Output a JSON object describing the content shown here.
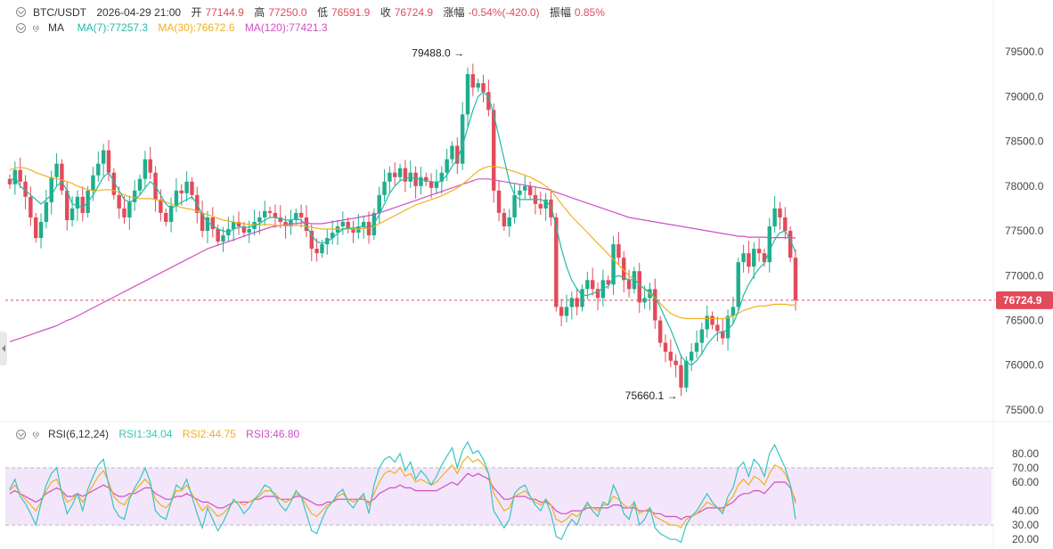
{
  "header": {
    "pair": "BTC/USDT",
    "datetime": "2026-04-29 21:00",
    "open_label": "开",
    "open": "77144.9",
    "high_label": "高",
    "high": "77250.0",
    "low_label": "低",
    "low": "76591.9",
    "close_label": "收",
    "close": "76724.9",
    "change_label": "涨幅",
    "change": "-0.54%(-420.0)",
    "amplitude_label": "振幅",
    "amplitude": "0.85%"
  },
  "ma_legend": {
    "name": "MA",
    "ma7": "MA(7):77257.3",
    "ma30": "MA(30):76672.6",
    "ma120": "MA(120):77421.3"
  },
  "rsi_legend": {
    "name": "RSI(6,12,24)",
    "rsi1": "RSI1:34.04",
    "rsi2": "RSI2:44.75",
    "rsi3": "RSI3:46.80"
  },
  "colors": {
    "up": "#1fae8c",
    "down": "#e24b5b",
    "ma7": "#22b9a5",
    "ma30": "#f2b01e",
    "ma120": "#d04fc3",
    "rsi1": "#36c5bf",
    "rsi2": "#f2b01e",
    "rsi3": "#d04fc3",
    "rsi_band": "#f3e6fb"
  },
  "chart_data": [
    {
      "type": "candlestick",
      "title": "BTC/USDT",
      "ylim": [
        75400,
        79700
      ],
      "yticks": [
        "79500.0",
        "79000.0",
        "78500.0",
        "78000.0",
        "77500.0",
        "77000.0",
        "76500.0",
        "76000.0",
        "75500.0"
      ],
      "ytick_values": [
        79500,
        79000,
        78500,
        78000,
        77500,
        77000,
        76500,
        76000,
        75500
      ],
      "current_price": 76724.9,
      "current_price_label": "76724.9",
      "high_annotation": {
        "value": 79488.0,
        "label": "79488.0"
      },
      "low_annotation": {
        "value": 75660.1,
        "label": "75660.1"
      },
      "closes": [
        78020,
        78180,
        78050,
        77880,
        77650,
        77420,
        77600,
        77820,
        78100,
        78250,
        77950,
        77620,
        77750,
        77880,
        77700,
        77950,
        78120,
        78250,
        78400,
        78150,
        77900,
        77750,
        77650,
        77820,
        77950,
        78080,
        78300,
        78150,
        77850,
        77700,
        77600,
        77780,
        77950,
        77920,
        78050,
        77900,
        77700,
        77500,
        77650,
        77520,
        77380,
        77450,
        77520,
        77600,
        77550,
        77480,
        77520,
        77600,
        77650,
        77720,
        77700,
        77650,
        77600,
        77550,
        77620,
        77700,
        77650,
        77500,
        77300,
        77250,
        77350,
        77420,
        77480,
        77550,
        77600,
        77520,
        77480,
        77550,
        77600,
        77450,
        77700,
        77900,
        78050,
        78150,
        78100,
        78200,
        78050,
        78150,
        78000,
        78100,
        78050,
        77980,
        78050,
        78150,
        78300,
        78450,
        78250,
        78800,
        79250,
        79100,
        79150,
        79050,
        78850,
        77950,
        77700,
        77550,
        77650,
        77900,
        77950,
        78000,
        77900,
        77800,
        77750,
        77850,
        77650,
        76650,
        76550,
        76650,
        76750,
        76650,
        76850,
        76950,
        76850,
        76750,
        76950,
        76900,
        77350,
        77200,
        76950,
        76850,
        77050,
        76700,
        76750,
        76850,
        76500,
        76250,
        76150,
        76050,
        76000,
        75750,
        76050,
        76150,
        76250,
        76400,
        76550,
        76450,
        76380,
        76300,
        76550,
        76650,
        77150,
        77250,
        77100,
        77300,
        77250,
        77150,
        77550,
        77750,
        77650,
        77500,
        77200,
        76724.9
      ],
      "ma7": [
        78050,
        78100,
        78000,
        77950,
        77900,
        77850,
        77800,
        77850,
        77900,
        78000,
        78050,
        77950,
        77800,
        77780,
        77760,
        77820,
        77900,
        78000,
        78100,
        78150,
        78050,
        77950,
        77850,
        77820,
        77850,
        77900,
        77980,
        78050,
        78000,
        77900,
        77800,
        77750,
        77780,
        77820,
        77850,
        77880,
        77800,
        77680,
        77600,
        77560,
        77520,
        77500,
        77480,
        77520,
        77540,
        77540,
        77540,
        77560,
        77580,
        77620,
        77650,
        77650,
        77640,
        77620,
        77620,
        77640,
        77620,
        77560,
        77450,
        77380,
        77360,
        77380,
        77420,
        77470,
        77520,
        77530,
        77530,
        77540,
        77550,
        77530,
        77580,
        77680,
        77800,
        77920,
        78000,
        78060,
        78080,
        78100,
        78080,
        78080,
        78060,
        78050,
        78040,
        78060,
        78120,
        78220,
        78300,
        78450,
        78650,
        78850,
        79000,
        79050,
        79000,
        78800,
        78550,
        78300,
        78050,
        77900,
        77850,
        77850,
        77850,
        77850,
        77850,
        77830,
        77780,
        77550,
        77300,
        77100,
        76950,
        76850,
        76780,
        76780,
        76800,
        76820,
        76860,
        76880,
        76980,
        77000,
        76980,
        76950,
        76960,
        76900,
        76850,
        76820,
        76760,
        76650,
        76520,
        76400,
        76250,
        76100,
        76030,
        76000,
        76050,
        76130,
        76230,
        76300,
        76360,
        76370,
        76400,
        76460,
        76600,
        76780,
        76900,
        77000,
        77080,
        77140,
        77280,
        77400,
        77480,
        77500,
        77400,
        77257.3
      ],
      "ma30": [
        78180,
        78200,
        78210,
        78200,
        78180,
        78150,
        78130,
        78110,
        78090,
        78080,
        78070,
        78050,
        78030,
        78000,
        77980,
        77960,
        77950,
        77950,
        77960,
        77960,
        77950,
        77930,
        77900,
        77880,
        77870,
        77860,
        77860,
        77860,
        77850,
        77840,
        77820,
        77800,
        77780,
        77760,
        77750,
        77740,
        77720,
        77700,
        77680,
        77660,
        77640,
        77620,
        77610,
        77600,
        77590,
        77580,
        77570,
        77570,
        77570,
        77570,
        77570,
        77560,
        77560,
        77560,
        77560,
        77560,
        77560,
        77550,
        77540,
        77530,
        77520,
        77520,
        77520,
        77520,
        77520,
        77520,
        77520,
        77520,
        77530,
        77530,
        77550,
        77580,
        77610,
        77640,
        77670,
        77700,
        77730,
        77760,
        77790,
        77810,
        77830,
        77850,
        77870,
        77890,
        77920,
        77950,
        77980,
        78020,
        78070,
        78120,
        78170,
        78200,
        78220,
        78220,
        78210,
        78200,
        78180,
        78160,
        78140,
        78120,
        78100,
        78070,
        78040,
        78000,
        77950,
        77880,
        77800,
        77730,
        77660,
        77600,
        77540,
        77480,
        77420,
        77360,
        77300,
        77240,
        77180,
        77120,
        77060,
        77000,
        76960,
        76900,
        76850,
        76800,
        76750,
        76690,
        76630,
        76580,
        76550,
        76530,
        76520,
        76520,
        76520,
        76520,
        76520,
        76520,
        76520,
        76520,
        76530,
        76550,
        76580,
        76610,
        76630,
        76650,
        76660,
        76660,
        76670,
        76680,
        76680,
        76680,
        76670,
        76672.6
      ],
      "ma120": [
        76260,
        76280,
        76300,
        76320,
        76340,
        76360,
        76380,
        76400,
        76420,
        76440,
        76470,
        76500,
        76520,
        76550,
        76580,
        76610,
        76640,
        76670,
        76700,
        76730,
        76760,
        76790,
        76820,
        76850,
        76880,
        76910,
        76940,
        76970,
        77000,
        77030,
        77060,
        77090,
        77120,
        77150,
        77180,
        77210,
        77240,
        77270,
        77300,
        77320,
        77340,
        77360,
        77380,
        77400,
        77420,
        77440,
        77460,
        77480,
        77500,
        77520,
        77540,
        77550,
        77560,
        77570,
        77580,
        77580,
        77590,
        77590,
        77580,
        77580,
        77580,
        77590,
        77600,
        77610,
        77620,
        77630,
        77640,
        77650,
        77660,
        77670,
        77680,
        77700,
        77720,
        77740,
        77760,
        77780,
        77800,
        77820,
        77840,
        77860,
        77880,
        77900,
        77920,
        77940,
        77960,
        77980,
        78000,
        78020,
        78040,
        78060,
        78080,
        78080,
        78080,
        78070,
        78060,
        78050,
        78040,
        78030,
        78020,
        78010,
        78000,
        77990,
        77980,
        77970,
        77950,
        77930,
        77910,
        77890,
        77870,
        77850,
        77830,
        77810,
        77790,
        77770,
        77750,
        77730,
        77710,
        77690,
        77670,
        77650,
        77640,
        77630,
        77620,
        77610,
        77600,
        77590,
        77580,
        77570,
        77560,
        77550,
        77540,
        77530,
        77520,
        77510,
        77500,
        77490,
        77480,
        77470,
        77460,
        77450,
        77440,
        77440,
        77430,
        77430,
        77430,
        77430,
        77425,
        77425,
        77425,
        77425,
        77422,
        77421.3
      ]
    },
    {
      "type": "line",
      "title": "RSI(6,12,24)",
      "ylim": [
        17,
        88
      ],
      "yticks": [
        "80.00",
        "70.00",
        "60.00",
        "40.00",
        "30.00",
        "20.00"
      ],
      "ytick_values": [
        80,
        70,
        60,
        40,
        30,
        20
      ],
      "band": [
        30,
        70
      ],
      "series": [
        {
          "name": "RSI1",
          "values": [
            55,
            62,
            50,
            45,
            38,
            30,
            45,
            58,
            66,
            70,
            52,
            38,
            44,
            52,
            40,
            55,
            64,
            72,
            76,
            58,
            42,
            36,
            34,
            48,
            56,
            62,
            70,
            60,
            40,
            36,
            34,
            46,
            58,
            55,
            62,
            50,
            38,
            28,
            42,
            34,
            26,
            32,
            40,
            48,
            44,
            38,
            42,
            48,
            52,
            58,
            56,
            50,
            44,
            40,
            46,
            54,
            50,
            38,
            26,
            24,
            34,
            42,
            46,
            52,
            55,
            46,
            42,
            48,
            52,
            38,
            58,
            70,
            76,
            78,
            74,
            80,
            68,
            74,
            62,
            68,
            64,
            58,
            64,
            72,
            78,
            84,
            70,
            82,
            88,
            80,
            82,
            76,
            66,
            40,
            34,
            28,
            34,
            52,
            56,
            58,
            50,
            44,
            40,
            48,
            38,
            22,
            20,
            28,
            34,
            30,
            40,
            46,
            40,
            36,
            46,
            44,
            58,
            50,
            38,
            34,
            46,
            30,
            34,
            42,
            28,
            24,
            22,
            20,
            20,
            18,
            30,
            36,
            40,
            46,
            52,
            46,
            42,
            38,
            50,
            56,
            70,
            74,
            64,
            76,
            72,
            64,
            80,
            86,
            78,
            70,
            58,
            34.04
          ]
        },
        {
          "name": "RSI2",
          "values": [
            54,
            58,
            52,
            48,
            44,
            40,
            46,
            54,
            60,
            62,
            54,
            46,
            48,
            52,
            46,
            52,
            58,
            64,
            68,
            60,
            50,
            46,
            44,
            50,
            54,
            58,
            62,
            58,
            48,
            44,
            42,
            46,
            54,
            54,
            58,
            52,
            46,
            40,
            44,
            40,
            36,
            38,
            42,
            46,
            46,
            44,
            46,
            48,
            50,
            54,
            54,
            52,
            48,
            46,
            48,
            52,
            50,
            44,
            38,
            36,
            40,
            44,
            46,
            50,
            52,
            48,
            46,
            48,
            50,
            44,
            52,
            60,
            66,
            68,
            66,
            70,
            64,
            66,
            60,
            62,
            60,
            58,
            60,
            64,
            68,
            72,
            66,
            74,
            78,
            74,
            76,
            72,
            66,
            52,
            46,
            40,
            42,
            50,
            52,
            54,
            50,
            46,
            44,
            48,
            44,
            34,
            32,
            34,
            38,
            36,
            40,
            44,
            42,
            40,
            44,
            44,
            50,
            48,
            44,
            42,
            46,
            38,
            40,
            42,
            36,
            34,
            32,
            30,
            30,
            28,
            34,
            36,
            38,
            42,
            46,
            44,
            42,
            40,
            46,
            50,
            58,
            62,
            58,
            64,
            62,
            58,
            66,
            72,
            70,
            66,
            58,
            44.75
          ]
        },
        {
          "name": "RSI3",
          "values": [
            52,
            54,
            52,
            50,
            48,
            46,
            48,
            52,
            54,
            56,
            54,
            50,
            50,
            52,
            50,
            52,
            54,
            56,
            58,
            56,
            52,
            50,
            50,
            52,
            52,
            54,
            56,
            56,
            52,
            50,
            48,
            48,
            50,
            50,
            52,
            50,
            48,
            46,
            46,
            44,
            42,
            42,
            44,
            46,
            46,
            46,
            46,
            48,
            48,
            50,
            50,
            50,
            48,
            48,
            48,
            50,
            50,
            48,
            46,
            44,
            44,
            46,
            46,
            48,
            48,
            48,
            48,
            48,
            48,
            46,
            48,
            52,
            54,
            56,
            56,
            58,
            56,
            56,
            54,
            54,
            54,
            54,
            54,
            56,
            58,
            60,
            58,
            62,
            66,
            64,
            66,
            64,
            62,
            56,
            52,
            48,
            48,
            50,
            50,
            50,
            48,
            48,
            46,
            46,
            44,
            40,
            38,
            38,
            40,
            40,
            40,
            42,
            42,
            42,
            42,
            42,
            44,
            44,
            42,
            42,
            42,
            40,
            40,
            40,
            38,
            38,
            36,
            36,
            36,
            34,
            36,
            36,
            38,
            40,
            42,
            42,
            42,
            42,
            44,
            46,
            50,
            52,
            52,
            54,
            54,
            52,
            56,
            60,
            60,
            60,
            56,
            46.8
          ]
        }
      ]
    }
  ]
}
